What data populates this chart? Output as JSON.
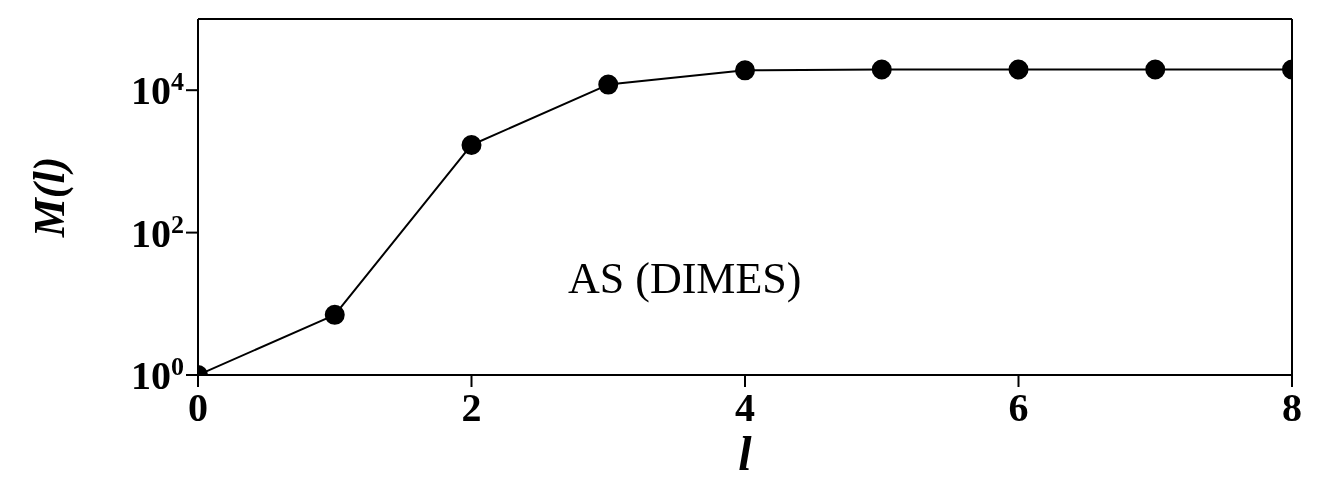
{
  "chart_data": {
    "type": "line",
    "xlabel": "l",
    "ylabel": "M(l)",
    "x": [
      0,
      1,
      2,
      3,
      4,
      5,
      6,
      7,
      8
    ],
    "series": [
      {
        "color": "#000000",
        "values": [
          1,
          7,
          1700,
          12000,
          19000,
          19500,
          19500,
          19500,
          19500
        ]
      }
    ],
    "xlim": [
      0,
      8
    ],
    "xticks": [
      0,
      2,
      4,
      6,
      8
    ],
    "ylim": [
      1,
      100000
    ],
    "yticks": [
      {
        "value": 1,
        "label": "10$^{0}$"
      },
      {
        "value": 100,
        "label": "10$^{2}$"
      },
      {
        "value": 10000,
        "label": "10$^{4}$"
      }
    ],
    "log": "y",
    "grid": false,
    "legend": false,
    "marker": "circle",
    "line_style": "solid",
    "annotations": [
      "AS (DIMES)"
    ]
  }
}
